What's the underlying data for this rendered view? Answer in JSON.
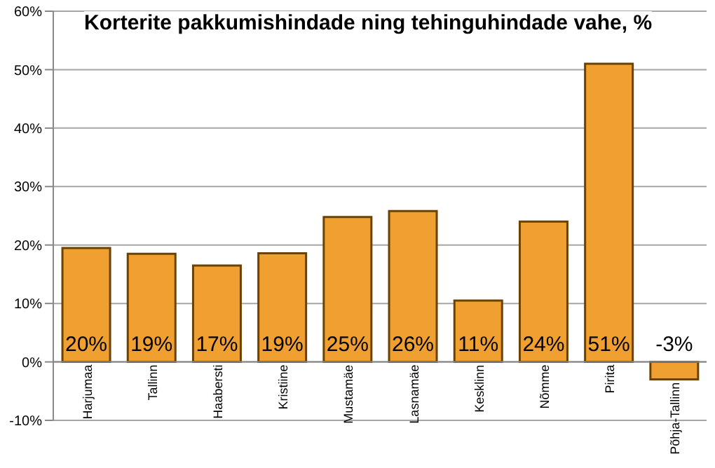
{
  "chart_data": {
    "type": "bar",
    "title": "Korterite pakkumishindade ning tehinguhindade vahe, %",
    "categories": [
      "Harjumaa",
      "Tallinn",
      "Haabersti",
      "Kristiine",
      "Mustamäe",
      "Lasnamäe",
      "Kesklinn",
      "Nõmme",
      "Pirita",
      "Põhja-Tallinn"
    ],
    "values": [
      19.5,
      18.5,
      16.5,
      18.6,
      24.8,
      25.8,
      10.5,
      24,
      51,
      -3
    ],
    "value_labels": [
      "20%",
      "19%",
      "17%",
      "19%",
      "25%",
      "26%",
      "11%",
      "24%",
      "51%",
      "-3%"
    ],
    "color": "#f0a030",
    "ylim": [
      -10,
      60
    ],
    "yticks": [
      {
        "value": -10,
        "label": "-10%"
      },
      {
        "value": 0,
        "label": "0%"
      },
      {
        "value": 10,
        "label": "10%"
      },
      {
        "value": 20,
        "label": "20%"
      },
      {
        "value": 30,
        "label": "30%"
      },
      {
        "value": 40,
        "label": "40%"
      },
      {
        "value": 50,
        "label": "50%"
      },
      {
        "value": 60,
        "label": "60%"
      }
    ],
    "grid": "y"
  }
}
